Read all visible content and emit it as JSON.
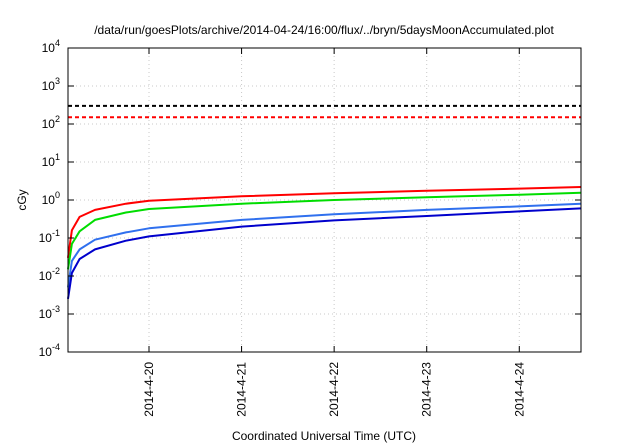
{
  "chart_data": {
    "type": "line",
    "title": "/data/run/goesPlots/archive/2014-04-24/16:00/flux/../bryn/5daysMoonAccumulated.plot",
    "xlabel": "Coordinated Universal Time (UTC)",
    "ylabel": "cGy",
    "y_scale": "log",
    "ylim": [
      0.0001,
      10000
    ],
    "xlim": [
      "2014-04-19 03:00",
      "2014-04-24 16:00"
    ],
    "grid": true,
    "x_ticks": [
      "2014-4-20",
      "2014-4-21",
      "2014-4-22",
      "2014-4-23",
      "2014-4-24"
    ],
    "y_ticks": [
      {
        "base": "10",
        "exp": "-4",
        "value": 0.0001
      },
      {
        "base": "10",
        "exp": "-3",
        "value": 0.001
      },
      {
        "base": "10",
        "exp": "-2",
        "value": 0.01
      },
      {
        "base": "10",
        "exp": "-1",
        "value": 0.1
      },
      {
        "base": "10",
        "exp": "0",
        "value": 1
      },
      {
        "base": "10",
        "exp": "1",
        "value": 10
      },
      {
        "base": "10",
        "exp": "2",
        "value": 100
      },
      {
        "base": "10",
        "exp": "3",
        "value": 1000
      },
      {
        "base": "10",
        "exp": "4",
        "value": 10000
      }
    ],
    "thresholds": [
      {
        "value": 300,
        "color": "#000000",
        "style": "dashed"
      },
      {
        "value": 150,
        "color": "#ff0000",
        "style": "dashed"
      }
    ],
    "series": [
      {
        "color": "#ff0000",
        "x": [
          "2014-04-19 03:00",
          "2014-04-19 04:00",
          "2014-04-19 06:00",
          "2014-04-19 10:00",
          "2014-04-19 18:00",
          "2014-04-20 00:00",
          "2014-04-21 00:00",
          "2014-04-22 00:00",
          "2014-04-23 00:00",
          "2014-04-24 00:00",
          "2014-04-24 16:00"
        ],
        "y": [
          0.03,
          0.16,
          0.36,
          0.55,
          0.8,
          0.95,
          1.25,
          1.5,
          1.75,
          2.0,
          2.2
        ]
      },
      {
        "color": "#00dd00",
        "x": [
          "2014-04-19 03:00",
          "2014-04-19 04:00",
          "2014-04-19 06:00",
          "2014-04-19 10:00",
          "2014-04-19 18:00",
          "2014-04-20 00:00",
          "2014-04-21 00:00",
          "2014-04-22 00:00",
          "2014-04-23 00:00",
          "2014-04-24 00:00",
          "2014-04-24 16:00"
        ],
        "y": [
          0.015,
          0.07,
          0.15,
          0.3,
          0.47,
          0.58,
          0.8,
          1.0,
          1.18,
          1.38,
          1.55
        ]
      },
      {
        "color": "#3070ee",
        "x": [
          "2014-04-19 03:00",
          "2014-04-19 04:00",
          "2014-04-19 06:00",
          "2014-04-19 10:00",
          "2014-04-19 18:00",
          "2014-04-20 00:00",
          "2014-04-21 00:00",
          "2014-04-22 00:00",
          "2014-04-23 00:00",
          "2014-04-24 00:00",
          "2014-04-24 16:00"
        ],
        "y": [
          0.005,
          0.025,
          0.05,
          0.09,
          0.14,
          0.18,
          0.3,
          0.42,
          0.55,
          0.68,
          0.8
        ]
      },
      {
        "color": "#0000cc",
        "x": [
          "2014-04-19 03:00",
          "2014-04-19 04:00",
          "2014-04-19 06:00",
          "2014-04-19 10:00",
          "2014-04-19 18:00",
          "2014-04-20 00:00",
          "2014-04-21 00:00",
          "2014-04-22 00:00",
          "2014-04-23 00:00",
          "2014-04-24 00:00",
          "2014-04-24 16:00"
        ],
        "y": [
          0.0025,
          0.012,
          0.028,
          0.05,
          0.085,
          0.11,
          0.2,
          0.29,
          0.38,
          0.5,
          0.6
        ]
      }
    ]
  }
}
